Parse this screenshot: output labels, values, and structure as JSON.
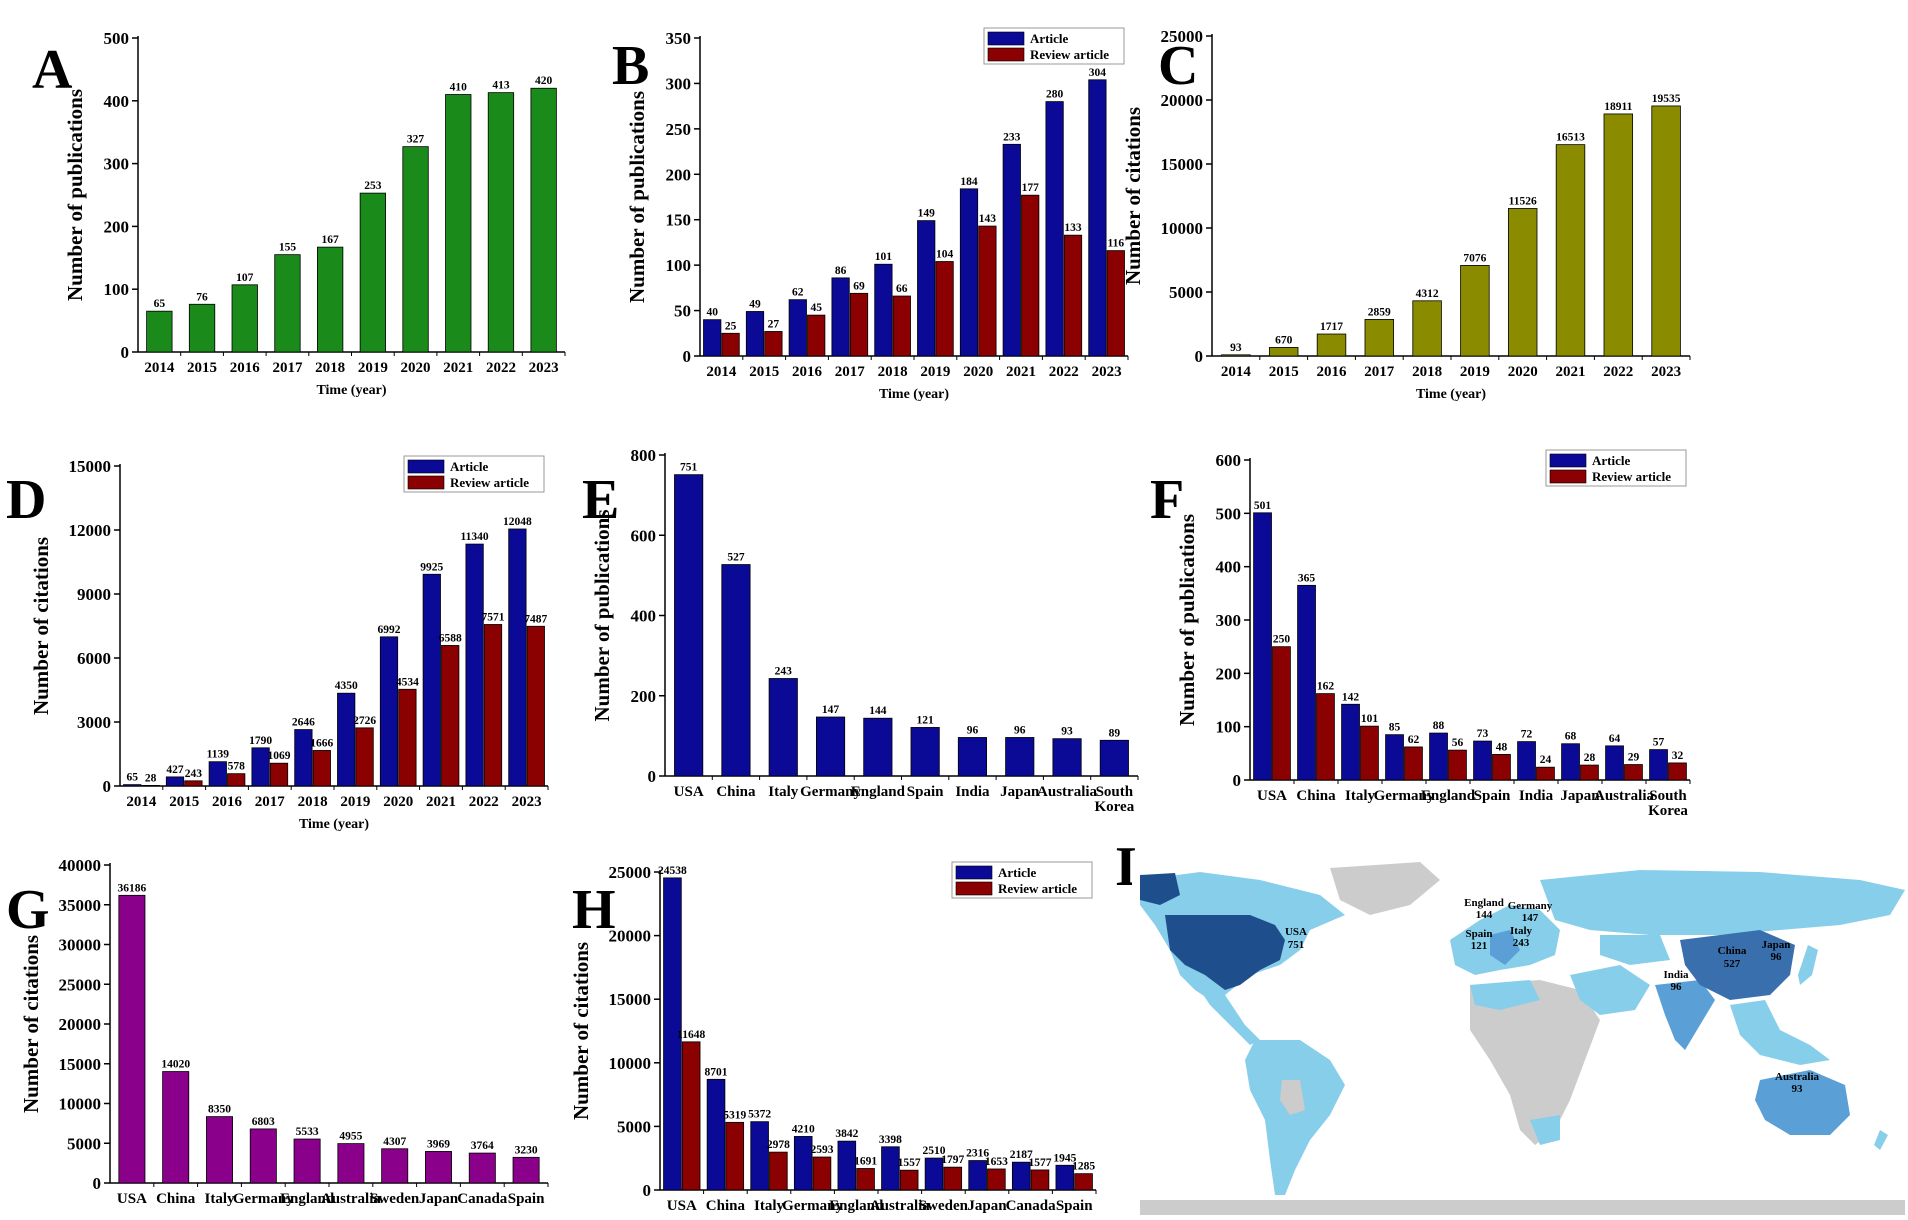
{
  "colors": {
    "green": "#1a8a1a",
    "article": "#0a0a96",
    "review": "#8b0000",
    "olive": "#8b8b00",
    "purple": "#8b008b",
    "map_none": "#cccccc",
    "map_low": "#87ceeb",
    "map_mid": "#5aa0d6",
    "map_high": "#3a6fae",
    "map_top": "#1f4e8c"
  },
  "chart_data": [
    {
      "panel": "A",
      "type": "bar",
      "xlabel": "Time (year)",
      "ylabel": "Number of publications",
      "ylim": [
        0,
        500
      ],
      "yticks": [
        0,
        100,
        200,
        300,
        400,
        500
      ],
      "categories": [
        "2014",
        "2015",
        "2016",
        "2017",
        "2018",
        "2019",
        "2020",
        "2021",
        "2022",
        "2023"
      ],
      "series": [
        {
          "name": "Publications",
          "color": "green",
          "values": [
            65,
            76,
            107,
            155,
            167,
            253,
            327,
            410,
            413,
            420
          ]
        }
      ]
    },
    {
      "panel": "B",
      "type": "bar",
      "xlabel": "Time (year)",
      "ylabel": "Number of publications",
      "ylim": [
        0,
        350
      ],
      "yticks": [
        0,
        50,
        100,
        150,
        200,
        250,
        300,
        350
      ],
      "legend": "top-right",
      "categories": [
        "2014",
        "2015",
        "2016",
        "2017",
        "2018",
        "2019",
        "2020",
        "2021",
        "2022",
        "2023"
      ],
      "series": [
        {
          "name": "Article",
          "color": "article",
          "values": [
            40,
            49,
            62,
            86,
            101,
            149,
            184,
            233,
            280,
            304
          ]
        },
        {
          "name": "Review article",
          "color": "review",
          "values": [
            25,
            27,
            45,
            69,
            66,
            104,
            143,
            177,
            133,
            116
          ]
        }
      ]
    },
    {
      "panel": "C",
      "type": "bar",
      "xlabel": "Time (year)",
      "ylabel": "Number of citations",
      "ylim": [
        0,
        25000
      ],
      "yticks": [
        0,
        5000,
        10000,
        15000,
        20000,
        25000
      ],
      "categories": [
        "2014",
        "2015",
        "2016",
        "2017",
        "2018",
        "2019",
        "2020",
        "2021",
        "2022",
        "2023"
      ],
      "series": [
        {
          "name": "Citations",
          "color": "olive",
          "values": [
            93,
            670,
            1717,
            2859,
            4312,
            7076,
            11526,
            16513,
            18911,
            19535
          ]
        }
      ]
    },
    {
      "panel": "D",
      "type": "bar",
      "xlabel": "Time (year)",
      "ylabel": "Number of citations",
      "ylim": [
        0,
        15000
      ],
      "yticks": [
        0,
        3000,
        6000,
        9000,
        12000,
        15000
      ],
      "legend": "top-right",
      "categories": [
        "2014",
        "2015",
        "2016",
        "2017",
        "2018",
        "2019",
        "2020",
        "2021",
        "2022",
        "2023"
      ],
      "series": [
        {
          "name": "Article",
          "color": "article",
          "values": [
            65,
            427,
            1139,
            1790,
            2646,
            4350,
            6992,
            9925,
            11340,
            12048
          ]
        },
        {
          "name": "Review article",
          "color": "review",
          "values": [
            28,
            243,
            578,
            1069,
            1666,
            2726,
            4534,
            6588,
            7571,
            7487
          ]
        }
      ]
    },
    {
      "panel": "E",
      "type": "bar",
      "xlabel": "",
      "ylabel": "Number of publications",
      "ylim": [
        0,
        800
      ],
      "yticks": [
        0,
        200,
        400,
        600,
        800
      ],
      "categories": [
        "USA",
        "China",
        "Italy",
        "Germany",
        "England",
        "Spain",
        "India",
        "Japan",
        "Australia",
        "South Korea"
      ],
      "series": [
        {
          "name": "Publications",
          "color": "article",
          "values": [
            751,
            527,
            243,
            147,
            144,
            121,
            96,
            96,
            93,
            89
          ]
        }
      ]
    },
    {
      "panel": "F",
      "type": "bar",
      "xlabel": "",
      "ylabel": "Number of publications",
      "ylim": [
        0,
        600
      ],
      "yticks": [
        0,
        100,
        200,
        300,
        400,
        500,
        600
      ],
      "legend": "top-right",
      "categories": [
        "USA",
        "China",
        "Italy",
        "Germany",
        "England",
        "Spain",
        "India",
        "Japan",
        "Australia",
        "South Korea"
      ],
      "series": [
        {
          "name": "Article",
          "color": "article",
          "values": [
            501,
            365,
            142,
            85,
            88,
            73,
            72,
            68,
            64,
            57
          ]
        },
        {
          "name": "Review article",
          "color": "review",
          "values": [
            250,
            162,
            101,
            62,
            56,
            48,
            24,
            28,
            29,
            32
          ]
        }
      ]
    },
    {
      "panel": "G",
      "type": "bar",
      "xlabel": "",
      "ylabel": "Number of citations",
      "ylim": [
        0,
        40000
      ],
      "yticks": [
        0,
        5000,
        10000,
        15000,
        20000,
        25000,
        30000,
        35000,
        40000
      ],
      "categories": [
        "USA",
        "China",
        "Italy",
        "Germany",
        "England",
        "Australia",
        "Sweden",
        "Japan",
        "Canada",
        "Spain"
      ],
      "series": [
        {
          "name": "Citations",
          "color": "purple",
          "values": [
            36186,
            14020,
            8350,
            6803,
            5533,
            4955,
            4307,
            3969,
            3764,
            3230
          ]
        }
      ]
    },
    {
      "panel": "H",
      "type": "bar",
      "xlabel": "",
      "ylabel": "Number of citations",
      "ylim": [
        0,
        25000
      ],
      "yticks": [
        0,
        5000,
        10000,
        15000,
        20000,
        25000
      ],
      "legend": "top-right",
      "categories": [
        "USA",
        "China",
        "Italy",
        "Germany",
        "England",
        "Australia",
        "Sweden",
        "Japan",
        "Canada",
        "Spain"
      ],
      "series": [
        {
          "name": "Article",
          "color": "article",
          "values": [
            24538,
            8701,
            5372,
            4210,
            3842,
            3398,
            2510,
            2316,
            2187,
            1945
          ]
        },
        {
          "name": "Review article",
          "color": "review",
          "values": [
            11648,
            5319,
            2978,
            2593,
            1691,
            1557,
            1797,
            1653,
            1577,
            1285
          ]
        }
      ]
    }
  ],
  "map": {
    "panel": "I",
    "labels": [
      {
        "country": "USA",
        "value": "751"
      },
      {
        "country": "China",
        "value": "527"
      },
      {
        "country": "England",
        "value": "144"
      },
      {
        "country": "Germany",
        "value": "147"
      },
      {
        "country": "Spain",
        "value": "121"
      },
      {
        "country": "Italy",
        "value": "243"
      },
      {
        "country": "India",
        "value": "96"
      },
      {
        "country": "Japan",
        "value": "96"
      },
      {
        "country": "Australia",
        "value": "93"
      }
    ]
  }
}
